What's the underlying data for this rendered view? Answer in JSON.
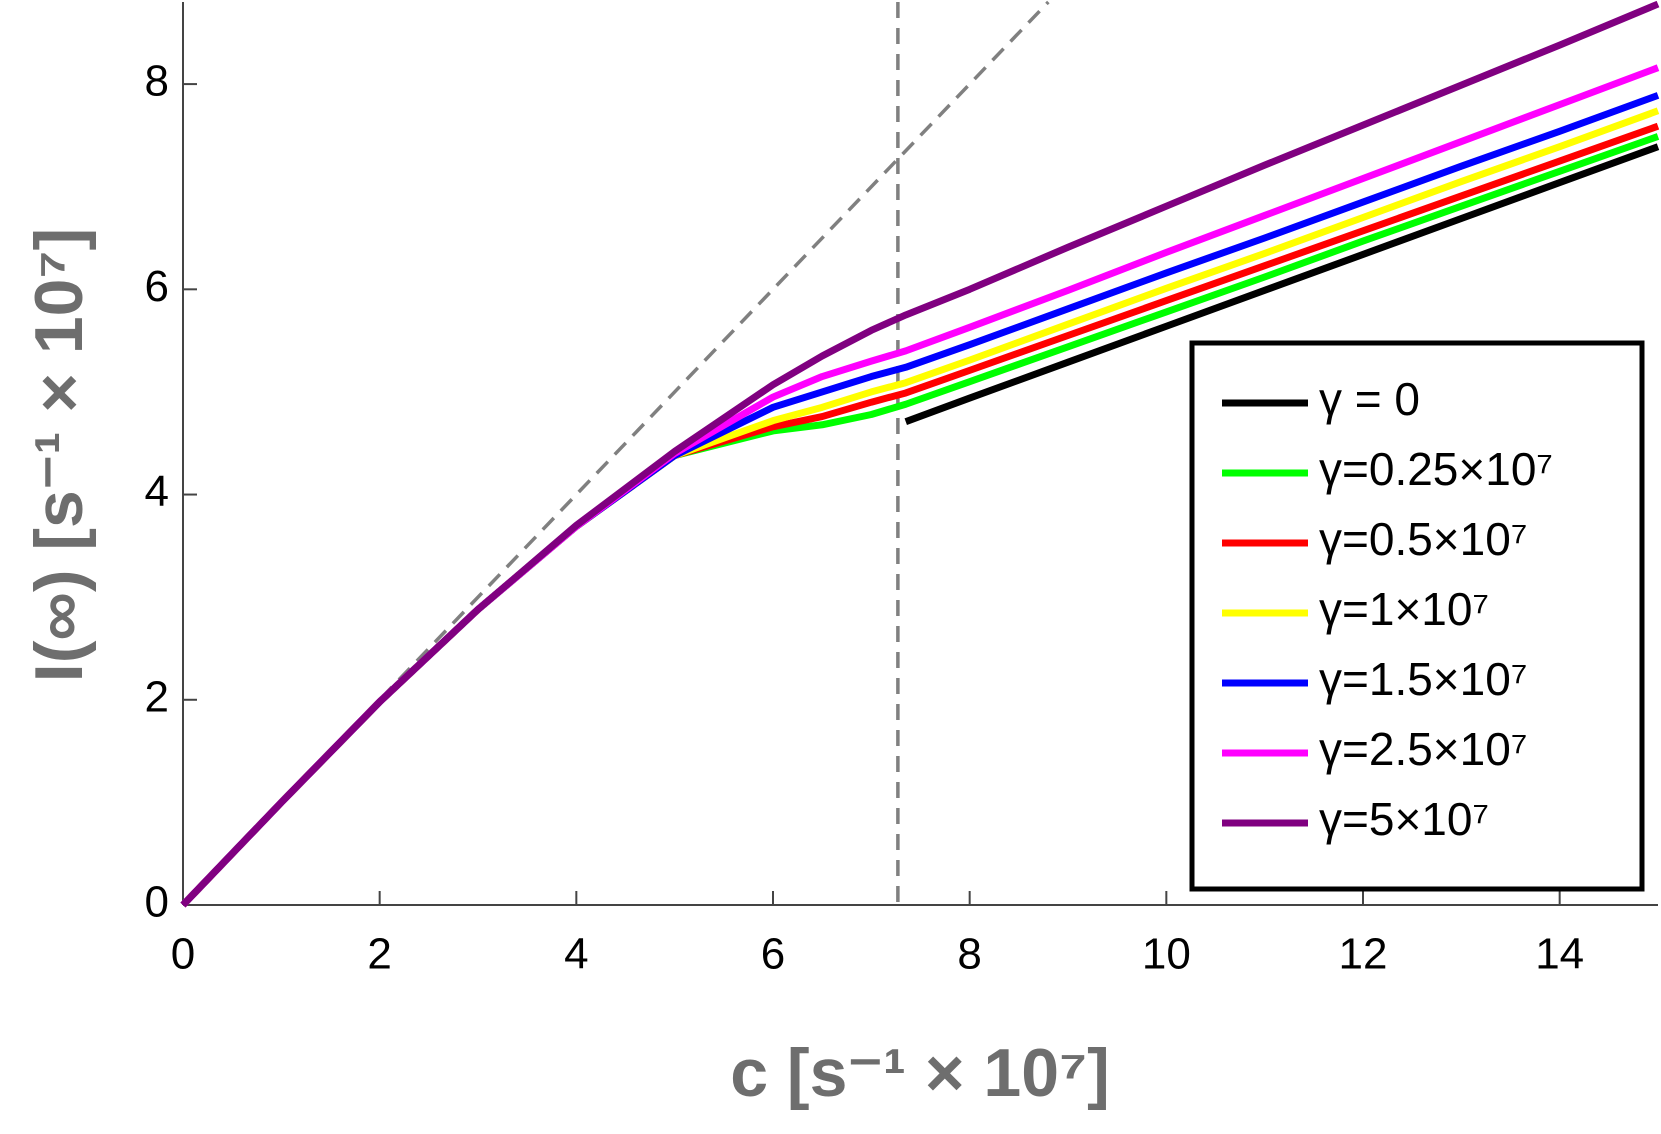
{
  "chart_data": {
    "type": "line",
    "x_label": "c [s⁻¹ × 10⁷]",
    "y_label": "I(∞) [s⁻¹ × 10⁷]",
    "x": [
      0,
      1,
      2,
      3,
      4,
      5,
      6,
      6.5,
      7,
      7.35,
      8,
      9,
      10,
      11,
      12,
      13,
      14,
      15
    ],
    "series": [
      {
        "name": "γ = 0",
        "color": "#000000",
        "values": [
          null,
          null,
          null,
          null,
          null,
          null,
          null,
          null,
          null,
          4.71,
          4.94,
          5.29,
          5.64,
          5.99,
          6.34,
          6.69,
          7.04,
          7.39
        ]
      },
      {
        "name": "γ=0.25×10⁷",
        "color": "#00ff00",
        "values": [
          0,
          1,
          1.98,
          2.88,
          3.69,
          4.38,
          4.62,
          4.68,
          4.78,
          4.88,
          5.1,
          5.44,
          5.78,
          6.12,
          6.47,
          6.81,
          7.15,
          7.49
        ]
      },
      {
        "name": "γ=0.5×10⁷",
        "color": "#ff0000",
        "values": [
          0,
          1,
          1.98,
          2.88,
          3.69,
          4.38,
          4.66,
          4.76,
          4.9,
          4.99,
          5.21,
          5.55,
          5.89,
          6.23,
          6.57,
          6.91,
          7.25,
          7.59
        ]
      },
      {
        "name": "γ=1×10⁷",
        "color": "#ffff00",
        "values": [
          0,
          1,
          1.98,
          2.88,
          3.69,
          4.38,
          4.72,
          4.85,
          5.0,
          5.09,
          5.31,
          5.66,
          6.01,
          6.35,
          6.7,
          7.05,
          7.39,
          7.74
        ]
      },
      {
        "name": "γ=1.5×10⁷",
        "color": "#0000ff",
        "values": [
          0,
          1,
          1.98,
          2.88,
          3.69,
          4.38,
          4.85,
          5.0,
          5.15,
          5.24,
          5.46,
          5.81,
          6.16,
          6.5,
          6.85,
          7.2,
          7.54,
          7.89
        ]
      },
      {
        "name": "γ=2.5×10⁷",
        "color": "#ff00ff",
        "values": [
          0,
          1,
          1.98,
          2.88,
          3.69,
          4.4,
          4.95,
          5.15,
          5.3,
          5.4,
          5.63,
          5.99,
          6.36,
          6.72,
          7.08,
          7.44,
          7.8,
          8.16
        ]
      },
      {
        "name": "γ=5×10⁷",
        "color": "#800080",
        "values": [
          0,
          1,
          1.98,
          2.88,
          3.7,
          4.42,
          5.07,
          5.35,
          5.6,
          5.75,
          6.0,
          6.41,
          6.81,
          7.21,
          7.6,
          7.99,
          8.38,
          8.78
        ]
      }
    ],
    "xlim": [
      0,
      15
    ],
    "xticks": [
      0,
      2,
      4,
      6,
      8,
      10,
      12,
      14
    ],
    "ylim": [
      0,
      8.8
    ],
    "yticks": [
      0,
      2,
      4,
      6,
      8
    ],
    "vline_x": 7.27,
    "diagonal_slope": 1,
    "reference_color": "#808080",
    "legend": "right"
  }
}
